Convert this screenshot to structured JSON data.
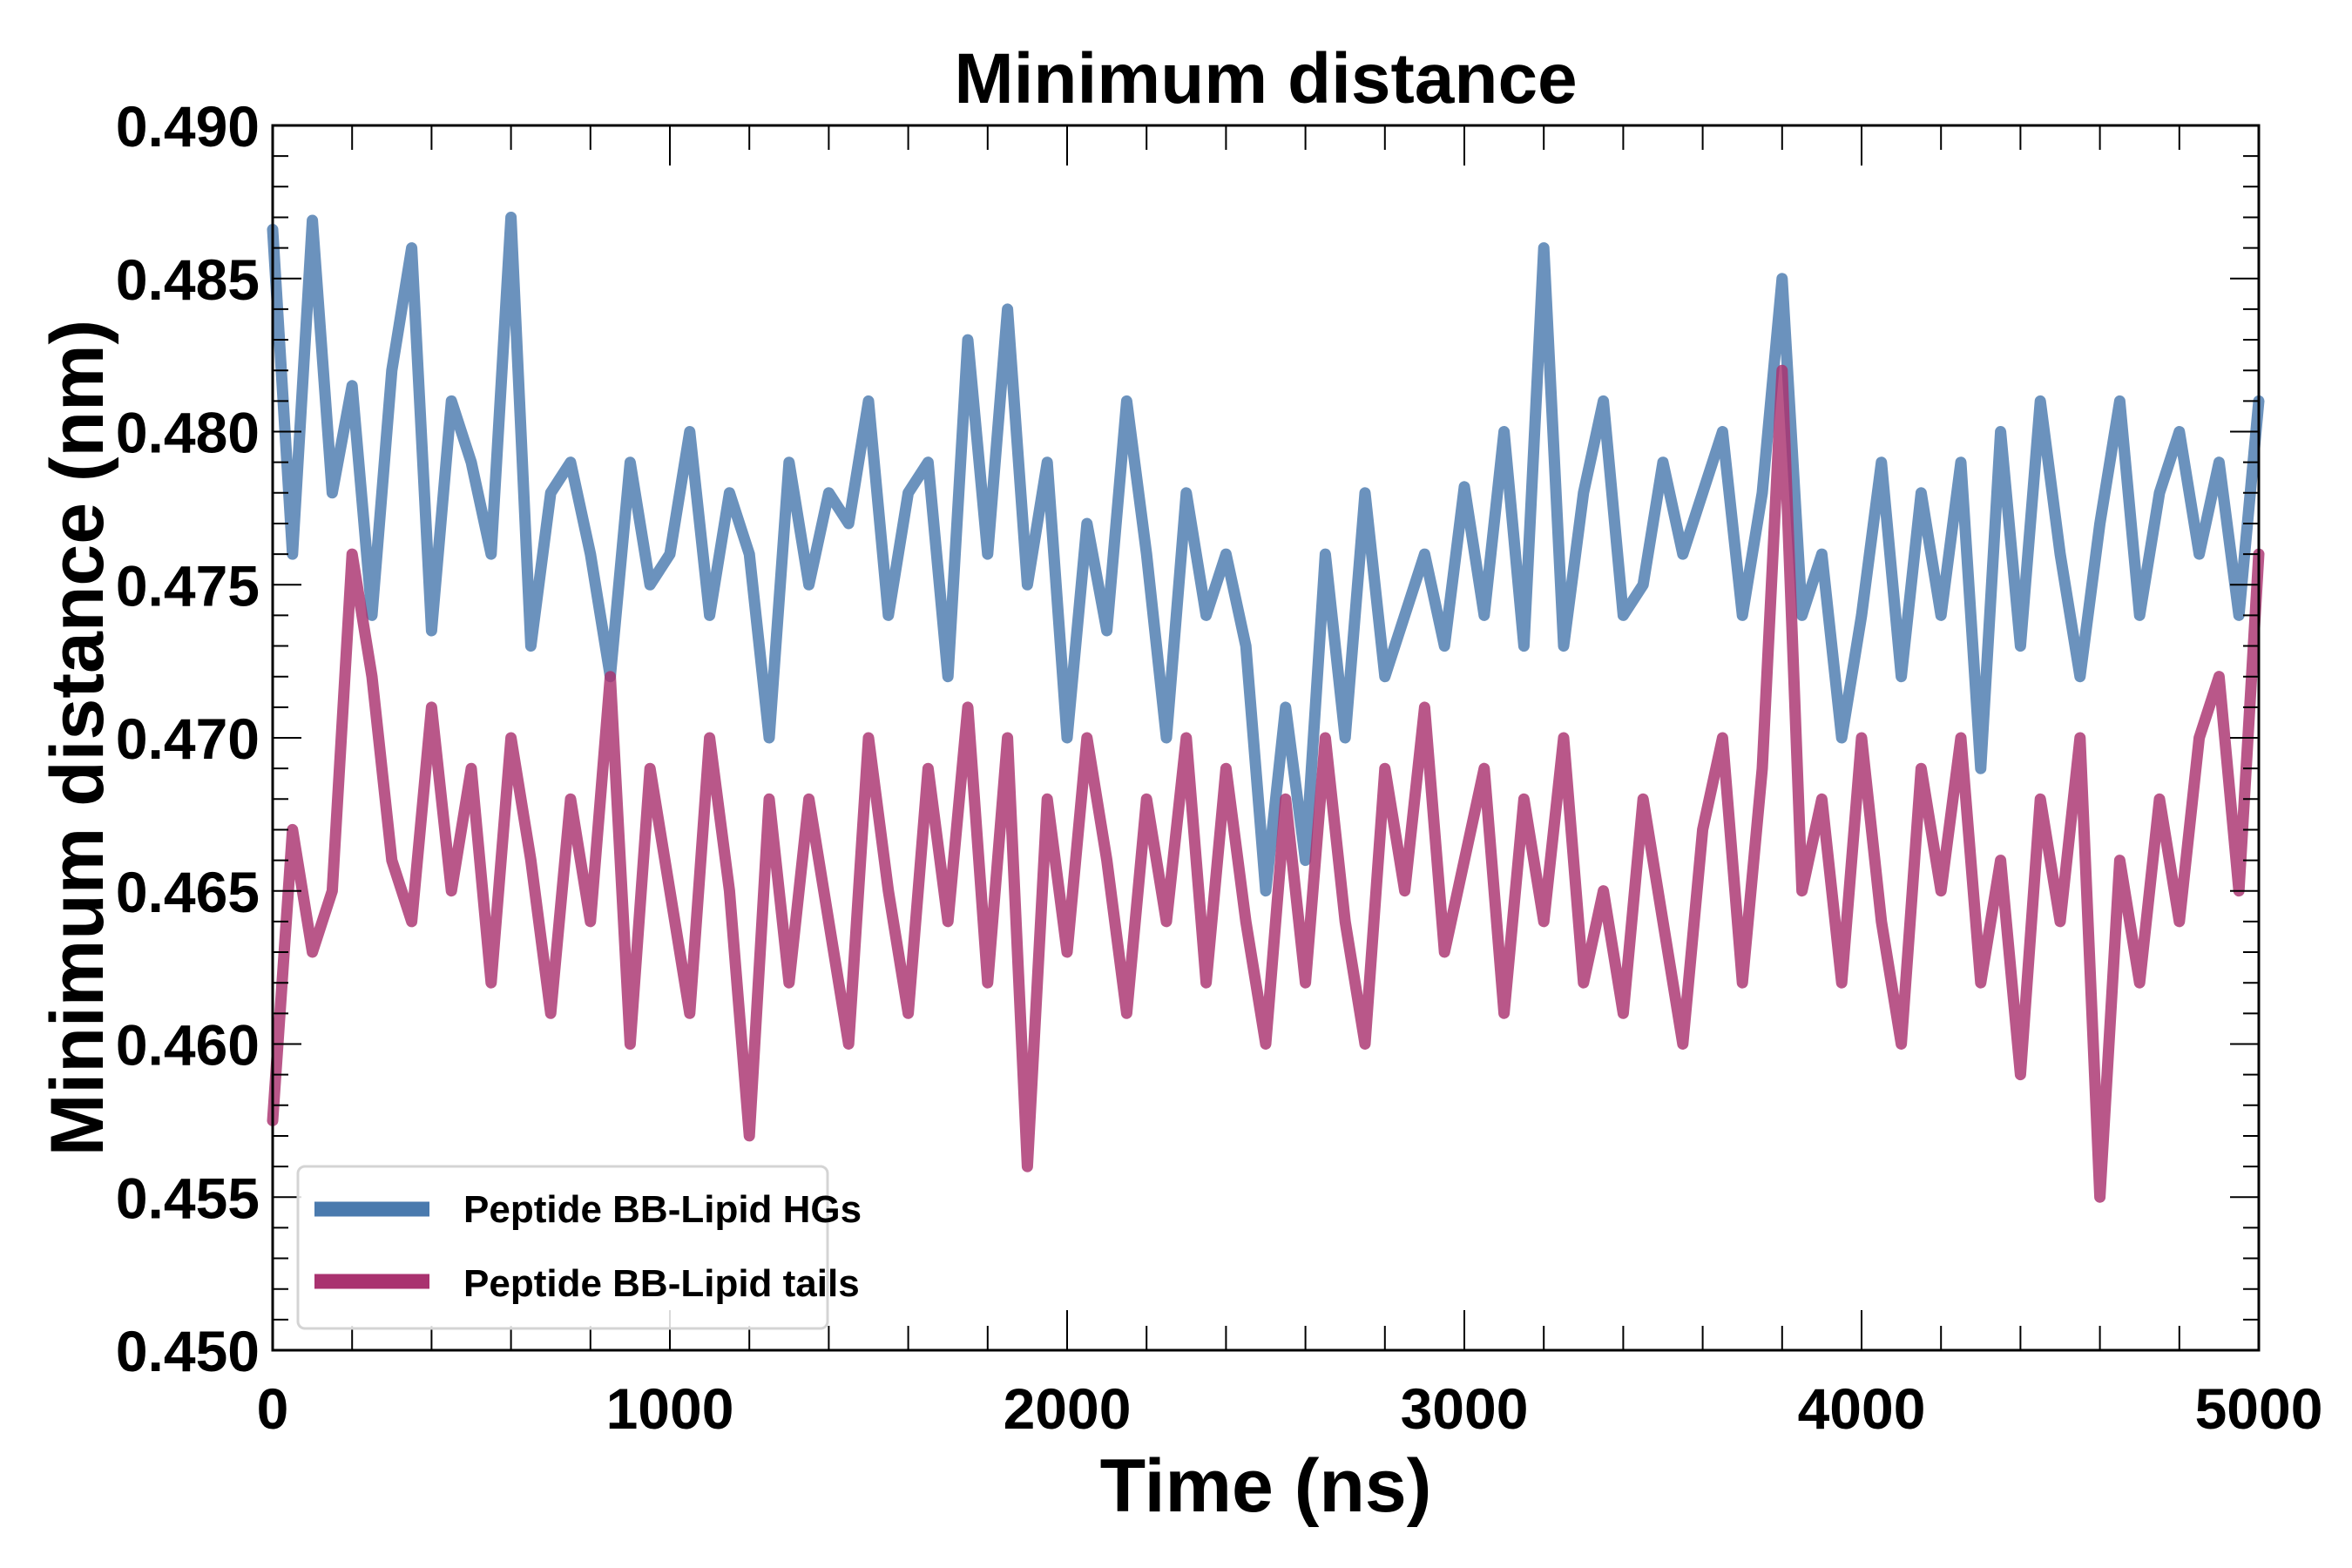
{
  "chart_data": {
    "type": "line",
    "title": "Minimum distance",
    "xlabel": "Time (ns)",
    "ylabel": "Minimum distance (nm)",
    "xlim": [
      0,
      5000
    ],
    "ylim": [
      0.45,
      0.49
    ],
    "xticks": [
      0,
      1000,
      2000,
      3000,
      4000,
      5000
    ],
    "xtick_labels": [
      "0",
      "1000",
      "2000",
      "3000",
      "4000",
      "5000"
    ],
    "yticks": [
      0.45,
      0.455,
      0.46,
      0.465,
      0.47,
      0.475,
      0.48,
      0.485,
      0.49
    ],
    "ytick_labels": [
      "0.450",
      "0.455",
      "0.460",
      "0.465",
      "0.470",
      "0.475",
      "0.480",
      "0.485",
      "0.490"
    ],
    "x_minor_step": 200,
    "y_minor_step": 0.001,
    "grid": false,
    "legend_position": "lower-left",
    "x_step": 50,
    "series": [
      {
        "name": "Peptide BB-Lipid HGs",
        "color": "#4a7aae",
        "values": [
          0.4866,
          0.476,
          0.4869,
          0.478,
          0.4815,
          0.474,
          0.482,
          0.486,
          0.4735,
          0.481,
          0.479,
          0.476,
          0.487,
          0.473,
          0.478,
          0.479,
          0.476,
          0.472,
          0.479,
          0.475,
          0.476,
          0.48,
          0.474,
          0.478,
          0.476,
          0.47,
          0.479,
          0.475,
          0.478,
          0.477,
          0.481,
          0.474,
          0.478,
          0.479,
          0.472,
          0.483,
          0.476,
          0.484,
          0.475,
          0.479,
          0.47,
          0.477,
          0.4735,
          0.481,
          0.476,
          0.47,
          0.478,
          0.474,
          0.476,
          0.473,
          0.465,
          0.471,
          0.466,
          0.476,
          0.47,
          0.478,
          0.472,
          0.474,
          0.476,
          0.473,
          0.4782,
          0.474,
          0.48,
          0.473,
          0.486,
          0.473,
          0.478,
          0.481,
          0.474,
          0.475,
          0.479,
          0.476,
          0.478,
          0.48,
          0.474,
          0.478,
          0.485,
          0.474,
          0.476,
          0.47,
          0.474,
          0.479,
          0.472,
          0.478,
          0.474,
          0.479,
          0.469,
          0.48,
          0.473,
          0.481,
          0.476,
          0.472,
          0.477,
          0.481,
          0.474,
          0.478,
          0.48,
          0.476,
          0.479,
          0.474,
          0.481
        ]
      },
      {
        "name": "Peptide BB-Lipid tails",
        "color": "#a9326f",
        "values": [
          0.4575,
          0.467,
          0.463,
          0.465,
          0.476,
          0.472,
          0.466,
          0.464,
          0.471,
          0.465,
          0.469,
          0.462,
          0.47,
          0.466,
          0.461,
          0.468,
          0.464,
          0.472,
          0.46,
          0.469,
          0.465,
          0.461,
          0.47,
          0.465,
          0.457,
          0.468,
          0.462,
          0.468,
          0.464,
          0.46,
          0.47,
          0.465,
          0.461,
          0.469,
          0.464,
          0.471,
          0.462,
          0.47,
          0.456,
          0.468,
          0.463,
          0.47,
          0.466,
          0.461,
          0.468,
          0.464,
          0.47,
          0.462,
          0.469,
          0.464,
          0.46,
          0.468,
          0.462,
          0.47,
          0.464,
          0.46,
          0.469,
          0.465,
          0.471,
          0.463,
          0.466,
          0.469,
          0.461,
          0.468,
          0.464,
          0.47,
          0.462,
          0.465,
          0.461,
          0.468,
          0.464,
          0.46,
          0.467,
          0.47,
          0.462,
          0.469,
          0.482,
          0.465,
          0.468,
          0.462,
          0.47,
          0.464,
          0.46,
          0.469,
          0.465,
          0.47,
          0.462,
          0.466,
          0.459,
          0.468,
          0.464,
          0.47,
          0.455,
          0.466,
          0.462,
          0.468,
          0.464,
          0.47,
          0.472,
          0.465,
          0.476
        ]
      }
    ]
  }
}
